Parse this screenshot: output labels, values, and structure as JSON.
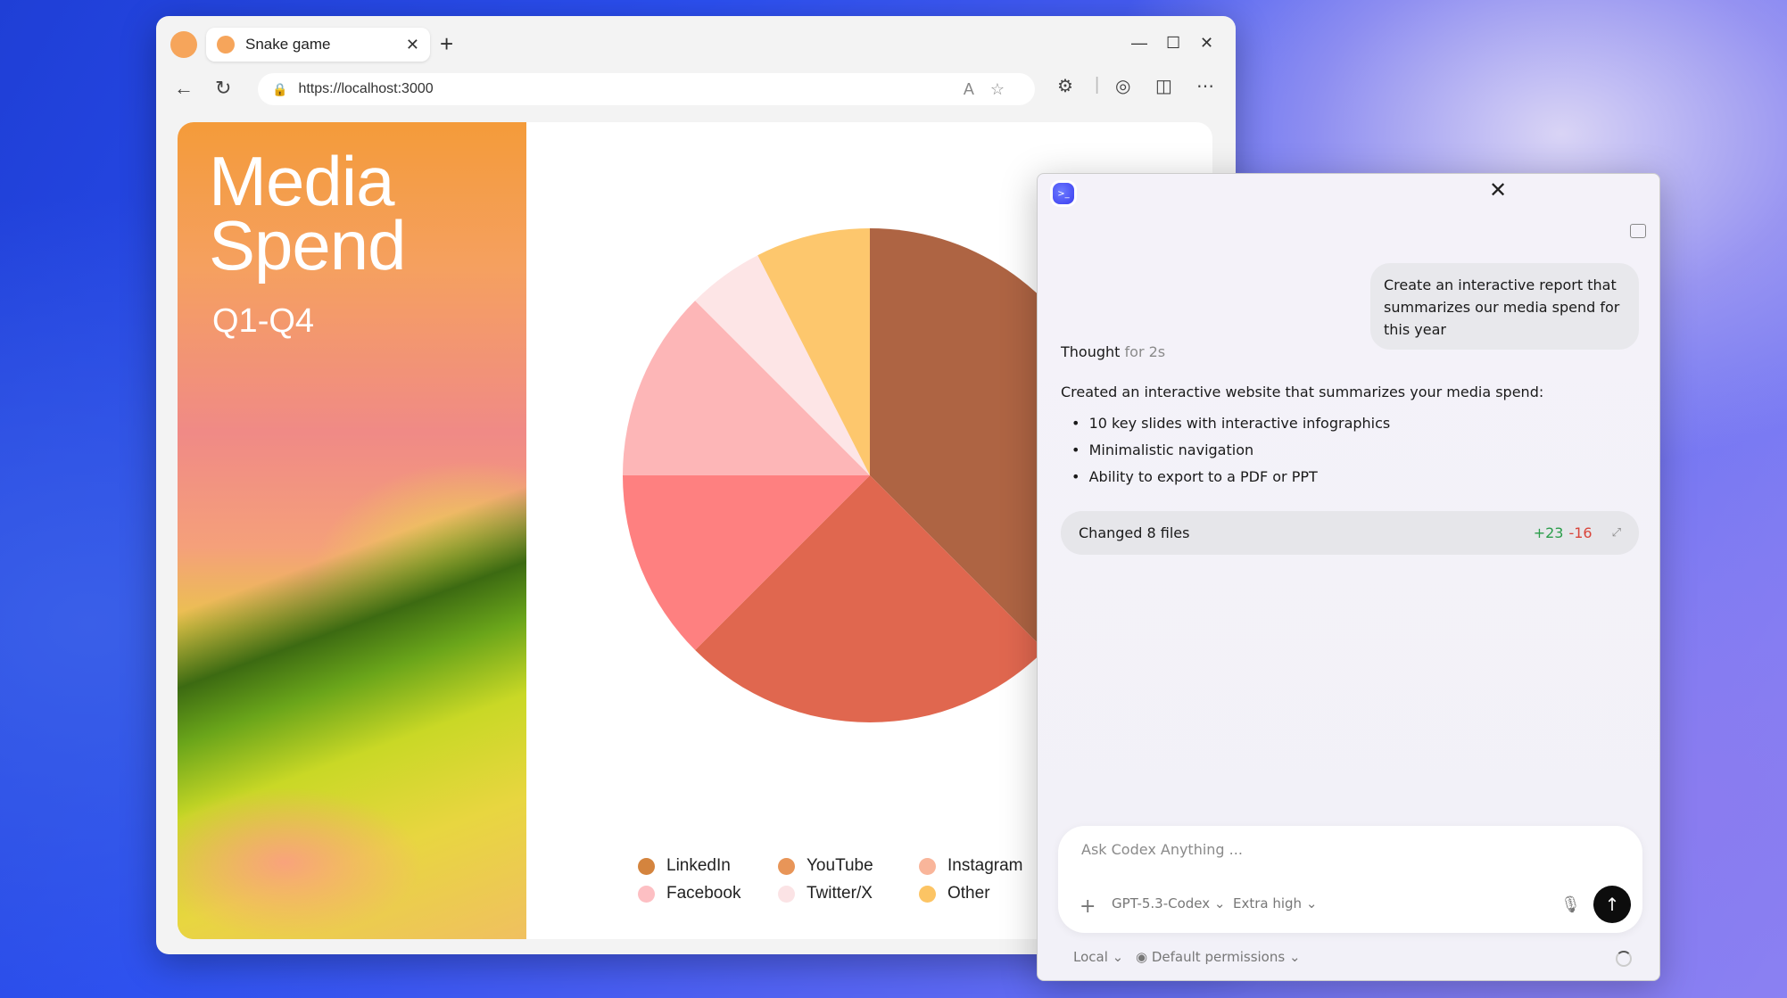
{
  "browser": {
    "tab_title": "Snake game",
    "url": "https://localhost:3000",
    "icons": [
      "profile-icon",
      "close-icon",
      "plus-icon",
      "minimize-icon",
      "maximize-icon",
      "back-icon",
      "refresh-icon",
      "lock-icon",
      "read-aloud-icon",
      "star-icon",
      "extensions-icon",
      "copilot-icon",
      "split-screen-icon",
      "more-icon"
    ]
  },
  "page": {
    "title_line1": "Media",
    "title_line2": "Spend",
    "subtitle": "Q1-Q4"
  },
  "chart_data": {
    "type": "pie",
    "start": "top",
    "direction": "clockwise",
    "categories": [
      "LinkedIn",
      "YouTube",
      "Instagram",
      "Facebook",
      "Twitter/X",
      "Other"
    ],
    "values": [
      37.5,
      25,
      12.5,
      12.5,
      5,
      7.5
    ],
    "slice_colors": [
      "#ae6443",
      "#e0674f",
      "#fe8080",
      "#fdb6b7",
      "#fde5e6",
      "#fdc76d"
    ],
    "legend_colors": [
      "#d4843e",
      "#e89558",
      "#f9b59a",
      "#fdbfc3",
      "#fbe3e5",
      "#fcc464"
    ],
    "legend_position": "bottom"
  },
  "codex": {
    "user_message": "Create an interactive report that summarizes our media spend for this year",
    "thought_label": "Thought",
    "thought_time": "for 2s",
    "reply": "Created an interactive website that summarizes your media spend:",
    "bullets": [
      "10 key slides with interactive infographics",
      "Minimalistic navigation",
      "Ability to export to a PDF or PPT"
    ],
    "changed": {
      "label": "Changed 8 files",
      "added": "+23",
      "removed": "-16"
    },
    "input_placeholder": "Ask Codex Anything ...",
    "model": "GPT-5.3-Codex",
    "effort": "Extra high",
    "env": "Local",
    "permissions": "Default permissions"
  }
}
